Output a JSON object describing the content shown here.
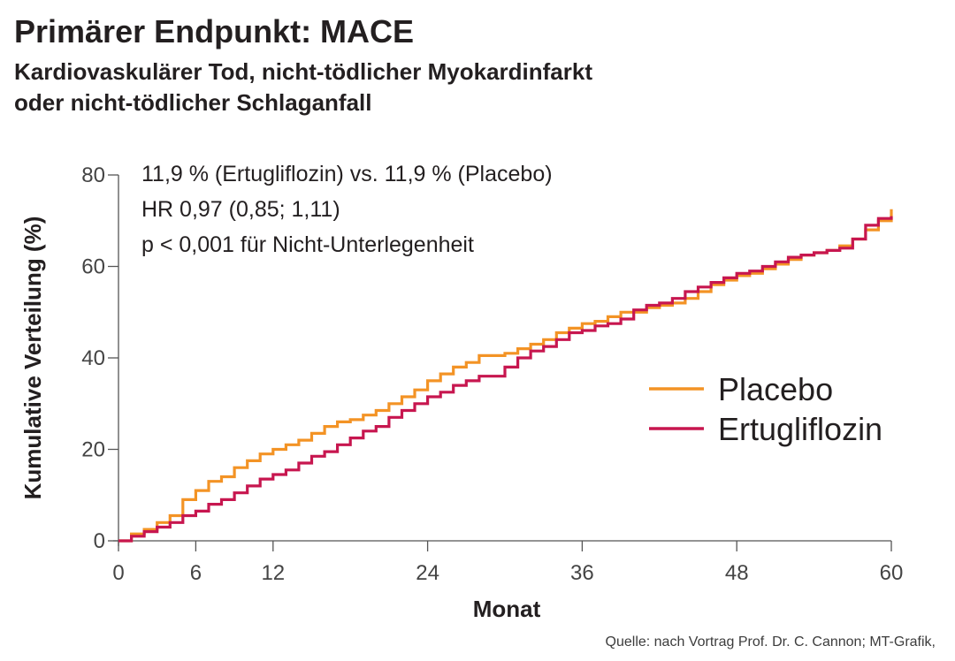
{
  "header": {
    "title": "Primärer Endpunkt: MACE",
    "subtitle_lines": [
      "Kardiovaskulärer Tod, nicht-tödlicher Myokardinfarkt",
      "oder nicht-tödlicher Schlaganfall"
    ]
  },
  "footer": {
    "source": "Quelle: nach Vortrag Prof. Dr. C. Cannon; MT-Grafik,"
  },
  "chart_data": {
    "type": "line",
    "step": true,
    "title": "Primärer Endpunkt: MACE",
    "xlabel": "Monat",
    "ylabel": "Kumulative Verteilung (%)",
    "xlim": [
      0,
      60
    ],
    "ylim": [
      0,
      80
    ],
    "xticks": [
      0,
      6,
      12,
      24,
      36,
      48,
      60
    ],
    "yticks": [
      0,
      20,
      40,
      60,
      80
    ],
    "grid": false,
    "legend_position": "right",
    "annotations": [
      "11,9 % (Ertugliflozin) vs. 11,9 % (Placebo)",
      "HR 0,97 (0,85; 1,11)",
      "p < 0,001 für Nicht-Unterlegenheit"
    ],
    "series": [
      {
        "name": "Placebo",
        "color": "#f39325",
        "x": [
          0,
          1,
          2,
          3,
          4,
          5,
          6,
          7,
          8,
          9,
          10,
          11,
          12,
          13,
          14,
          15,
          16,
          17,
          18,
          19,
          20,
          21,
          22,
          23,
          24,
          25,
          26,
          27,
          28,
          30,
          31,
          32,
          33,
          34,
          35,
          36,
          37,
          38,
          39,
          40,
          41,
          42,
          43,
          44,
          45,
          46,
          47,
          48,
          49,
          50,
          51,
          52,
          53,
          54,
          55,
          56,
          57,
          58,
          59,
          60
        ],
        "y": [
          0,
          1.5,
          2.5,
          4,
          5.5,
          9,
          11,
          13,
          14,
          16,
          17.5,
          19,
          20,
          21,
          22,
          23.5,
          25,
          26,
          26.5,
          27.5,
          28.5,
          30,
          31.5,
          33,
          35,
          36.5,
          38,
          39,
          40.5,
          41,
          42,
          43,
          44,
          45.5,
          46.5,
          47.5,
          48,
          49,
          50,
          50,
          51,
          51.5,
          52,
          53,
          54.5,
          56,
          57,
          58,
          58.5,
          59.5,
          60.5,
          61.5,
          62.5,
          63,
          63.5,
          64.5,
          66,
          68,
          70,
          72.5
        ]
      },
      {
        "name": "Ertugliflozin",
        "color": "#c7164f",
        "x": [
          0,
          1,
          2,
          3,
          4,
          5,
          6,
          7,
          8,
          9,
          10,
          11,
          12,
          13,
          14,
          15,
          16,
          17,
          18,
          19,
          20,
          21,
          22,
          23,
          24,
          25,
          26,
          27,
          28,
          30,
          31,
          32,
          33,
          34,
          35,
          36,
          37,
          38,
          39,
          40,
          41,
          42,
          43,
          44,
          45,
          46,
          47,
          48,
          49,
          50,
          51,
          52,
          53,
          54,
          55,
          56,
          57,
          58,
          59,
          60
        ],
        "y": [
          0,
          1,
          2,
          3,
          4,
          5.5,
          6.5,
          8,
          9,
          10.5,
          12,
          13.5,
          14.5,
          15.5,
          17,
          18.5,
          19.5,
          21,
          22.5,
          24,
          25,
          27,
          28.5,
          30,
          31.5,
          32.5,
          34,
          35,
          36,
          38,
          40,
          41.5,
          42.5,
          44,
          45.5,
          46,
          47,
          47.5,
          48.5,
          50.5,
          51.5,
          52,
          53,
          54.5,
          55.5,
          56.5,
          57.5,
          58.5,
          59,
          60,
          61,
          62,
          62.5,
          63,
          63.5,
          64,
          66,
          69,
          70.5,
          71
        ]
      }
    ]
  }
}
